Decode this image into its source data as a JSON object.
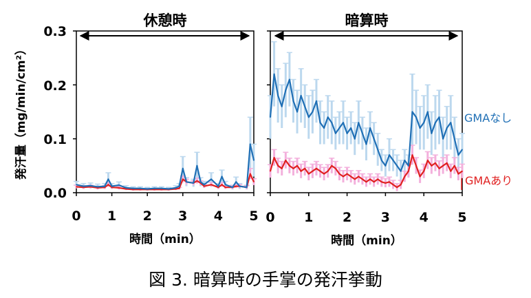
{
  "figure_caption": "図 3. 暗算時の手掌の発汗挙動",
  "chart_data": [
    {
      "type": "line",
      "title": "休憩時",
      "xlabel": "時間（min）",
      "ylabel": "発汗量（mg/min/cm²）",
      "xlim": [
        0,
        5
      ],
      "ylim": [
        0,
        0.3
      ],
      "x_ticks": [
        "0",
        "1",
        "2",
        "3",
        "4",
        "5"
      ],
      "y_ticks": [
        "0.0",
        "0.1",
        "0.2",
        "0.3"
      ],
      "x": [
        0,
        0.2,
        0.4,
        0.6,
        0.8,
        0.9,
        1.0,
        1.2,
        1.4,
        1.6,
        1.8,
        2.0,
        2.2,
        2.4,
        2.6,
        2.8,
        2.9,
        3.0,
        3.1,
        3.3,
        3.4,
        3.5,
        3.6,
        3.8,
        4.0,
        4.1,
        4.2,
        4.4,
        4.5,
        4.6,
        4.8,
        4.9,
        5.0
      ],
      "series": [
        {
          "name": "GMAなし",
          "color": "#1f6fb5",
          "band_color": "#bcd8ee",
          "values": [
            0.015,
            0.012,
            0.013,
            0.011,
            0.012,
            0.025,
            0.012,
            0.014,
            0.009,
            0.008,
            0.008,
            0.007,
            0.008,
            0.008,
            0.007,
            0.009,
            0.012,
            0.045,
            0.02,
            0.018,
            0.05,
            0.02,
            0.015,
            0.025,
            0.012,
            0.03,
            0.015,
            0.01,
            0.02,
            0.012,
            0.01,
            0.09,
            0.06
          ],
          "error": [
            0.006,
            0.005,
            0.005,
            0.005,
            0.005,
            0.012,
            0.005,
            0.006,
            0.004,
            0.003,
            0.003,
            0.003,
            0.003,
            0.003,
            0.003,
            0.004,
            0.005,
            0.022,
            0.008,
            0.007,
            0.025,
            0.008,
            0.006,
            0.012,
            0.005,
            0.012,
            0.006,
            0.004,
            0.009,
            0.005,
            0.004,
            0.05,
            0.03
          ]
        },
        {
          "name": "GMAあり",
          "color": "#e02020",
          "band_color": "#f3b0dc",
          "values": [
            0.011,
            0.01,
            0.011,
            0.009,
            0.01,
            0.015,
            0.01,
            0.009,
            0.007,
            0.006,
            0.006,
            0.006,
            0.006,
            0.006,
            0.006,
            0.007,
            0.008,
            0.025,
            0.02,
            0.018,
            0.022,
            0.018,
            0.012,
            0.015,
            0.01,
            0.015,
            0.01,
            0.01,
            0.012,
            0.012,
            0.01,
            0.035,
            0.02
          ],
          "error": [
            0.003,
            0.003,
            0.003,
            0.003,
            0.003,
            0.004,
            0.003,
            0.003,
            0.002,
            0.002,
            0.002,
            0.002,
            0.002,
            0.002,
            0.002,
            0.002,
            0.002,
            0.006,
            0.005,
            0.004,
            0.005,
            0.004,
            0.003,
            0.004,
            0.003,
            0.004,
            0.003,
            0.003,
            0.003,
            0.003,
            0.003,
            0.01,
            0.006
          ]
        }
      ]
    },
    {
      "type": "line",
      "title": "暗算時",
      "xlabel": "時間（min）",
      "ylabel": "",
      "xlim": [
        0,
        5
      ],
      "ylim": [
        0,
        0.3
      ],
      "x_ticks": [
        "0",
        "1",
        "2",
        "3",
        "4",
        "5"
      ],
      "y_ticks": [],
      "x": [
        0,
        0.1,
        0.2,
        0.3,
        0.4,
        0.5,
        0.6,
        0.7,
        0.8,
        0.9,
        1.0,
        1.1,
        1.2,
        1.3,
        1.4,
        1.5,
        1.6,
        1.7,
        1.8,
        1.9,
        2.0,
        2.1,
        2.2,
        2.3,
        2.4,
        2.5,
        2.6,
        2.7,
        2.8,
        2.9,
        3.0,
        3.1,
        3.2,
        3.3,
        3.4,
        3.5,
        3.6,
        3.7,
        3.8,
        3.9,
        4.0,
        4.1,
        4.2,
        4.3,
        4.4,
        4.5,
        4.6,
        4.7,
        4.8,
        4.9,
        5.0
      ],
      "series": [
        {
          "name": "GMAなし",
          "color": "#1f6fb5",
          "band_color": "#bcd8ee",
          "values": [
            0.14,
            0.22,
            0.18,
            0.16,
            0.19,
            0.21,
            0.17,
            0.15,
            0.18,
            0.16,
            0.14,
            0.15,
            0.17,
            0.13,
            0.12,
            0.14,
            0.13,
            0.11,
            0.12,
            0.13,
            0.11,
            0.12,
            0.1,
            0.13,
            0.11,
            0.09,
            0.12,
            0.1,
            0.08,
            0.06,
            0.05,
            0.07,
            0.06,
            0.05,
            0.04,
            0.06,
            0.05,
            0.15,
            0.14,
            0.12,
            0.13,
            0.15,
            0.11,
            0.13,
            0.14,
            0.1,
            0.12,
            0.13,
            0.1,
            0.07,
            0.08
          ],
          "error": [
            0.04,
            0.06,
            0.05,
            0.04,
            0.05,
            0.05,
            0.04,
            0.04,
            0.05,
            0.04,
            0.04,
            0.04,
            0.04,
            0.04,
            0.03,
            0.04,
            0.04,
            0.03,
            0.03,
            0.04,
            0.03,
            0.03,
            0.03,
            0.04,
            0.03,
            0.03,
            0.03,
            0.03,
            0.03,
            0.02,
            0.02,
            0.03,
            0.02,
            0.02,
            0.02,
            0.02,
            0.02,
            0.07,
            0.05,
            0.04,
            0.05,
            0.05,
            0.04,
            0.05,
            0.05,
            0.04,
            0.04,
            0.05,
            0.04,
            0.03,
            0.03
          ]
        },
        {
          "name": "GMAあり",
          "color": "#e02020",
          "band_color": "#f3b0dc",
          "values": [
            0.04,
            0.065,
            0.05,
            0.045,
            0.06,
            0.05,
            0.045,
            0.05,
            0.04,
            0.045,
            0.035,
            0.04,
            0.045,
            0.04,
            0.035,
            0.04,
            0.05,
            0.045,
            0.035,
            0.03,
            0.035,
            0.03,
            0.025,
            0.03,
            0.025,
            0.02,
            0.025,
            0.02,
            0.025,
            0.02,
            0.018,
            0.02,
            0.015,
            0.01,
            0.015,
            0.03,
            0.04,
            0.07,
            0.05,
            0.03,
            0.04,
            0.06,
            0.05,
            0.055,
            0.045,
            0.05,
            0.055,
            0.04,
            0.05,
            0.035,
            0.04
          ],
          "error": [
            0.012,
            0.015,
            0.014,
            0.013,
            0.015,
            0.014,
            0.013,
            0.014,
            0.013,
            0.013,
            0.012,
            0.013,
            0.013,
            0.012,
            0.012,
            0.012,
            0.014,
            0.013,
            0.012,
            0.011,
            0.012,
            0.011,
            0.01,
            0.011,
            0.01,
            0.009,
            0.01,
            0.009,
            0.01,
            0.009,
            0.008,
            0.009,
            0.008,
            0.007,
            0.008,
            0.01,
            0.012,
            0.018,
            0.015,
            0.012,
            0.013,
            0.016,
            0.015,
            0.015,
            0.014,
            0.015,
            0.015,
            0.013,
            0.015,
            0.012,
            0.013
          ]
        }
      ]
    }
  ]
}
